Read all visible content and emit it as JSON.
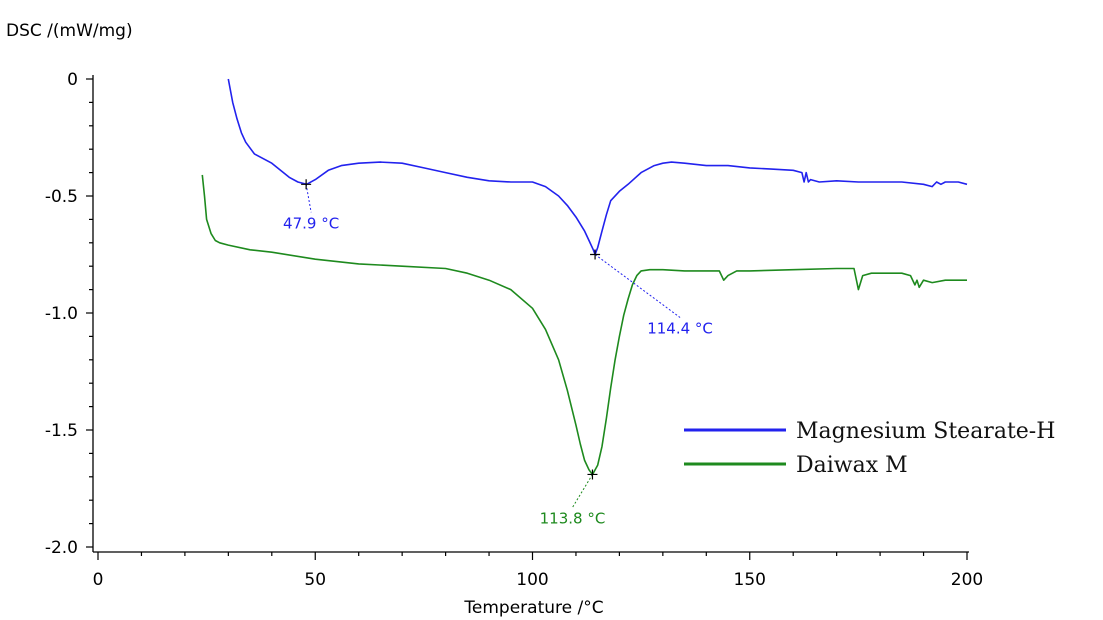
{
  "chart_data": {
    "type": "line",
    "ylabel": "DSC /(mW/mg)",
    "xlabel": "Temperature /°C",
    "xlim": [
      0,
      200
    ],
    "ylim": [
      -2.0,
      0
    ],
    "x_ticks": [
      0,
      50,
      100,
      150,
      200
    ],
    "x_tick_labels": [
      "0",
      "50",
      "100",
      "150",
      "200"
    ],
    "y_ticks": [
      0,
      -0.5,
      -1.0,
      -1.5,
      -2.0
    ],
    "y_tick_labels": [
      "0",
      "-0.5",
      "-1.0",
      "-1.5",
      "-2.0"
    ],
    "grid": false,
    "legend_position": "bottom-right",
    "series": [
      {
        "name": "Magnesium Stearate-H",
        "color": "#2222ee",
        "x": [
          30,
          31,
          32,
          33,
          34,
          36,
          38,
          40,
          42,
          44,
          46,
          48,
          50,
          53,
          56,
          60,
          65,
          70,
          75,
          80,
          85,
          90,
          95,
          100,
          103,
          106,
          108,
          110,
          112,
          113,
          114,
          114.4,
          115,
          116,
          117,
          118,
          120,
          122,
          125,
          128,
          130,
          132,
          135,
          140,
          145,
          150,
          155,
          160,
          162,
          162.5,
          163,
          163.5,
          164,
          166,
          170,
          175,
          180,
          185,
          190,
          192,
          193,
          194,
          195,
          198,
          200
        ],
        "y": [
          0,
          -0.1,
          -0.17,
          -0.23,
          -0.27,
          -0.32,
          -0.34,
          -0.36,
          -0.39,
          -0.42,
          -0.44,
          -0.45,
          -0.43,
          -0.39,
          -0.37,
          -0.36,
          -0.355,
          -0.36,
          -0.38,
          -0.4,
          -0.42,
          -0.435,
          -0.44,
          -0.44,
          -0.46,
          -0.5,
          -0.54,
          -0.59,
          -0.65,
          -0.69,
          -0.73,
          -0.75,
          -0.72,
          -0.65,
          -0.58,
          -0.52,
          -0.48,
          -0.45,
          -0.4,
          -0.37,
          -0.36,
          -0.355,
          -0.36,
          -0.37,
          -0.37,
          -0.38,
          -0.385,
          -0.39,
          -0.4,
          -0.44,
          -0.4,
          -0.44,
          -0.43,
          -0.44,
          -0.435,
          -0.44,
          -0.44,
          -0.44,
          -0.45,
          -0.46,
          -0.44,
          -0.45,
          -0.44,
          -0.44,
          -0.45
        ]
      },
      {
        "name": "Daiwax M",
        "color": "#1e8a1e",
        "x": [
          24,
          24.5,
          25,
          26,
          27,
          28,
          30,
          35,
          40,
          50,
          60,
          70,
          80,
          85,
          90,
          95,
          100,
          103,
          106,
          108,
          110,
          111,
          112,
          113,
          113.8,
          115,
          116,
          117,
          118,
          119,
          120,
          121,
          122,
          123,
          124,
          125,
          127,
          130,
          135,
          140,
          143,
          144,
          145,
          147,
          150,
          160,
          170,
          174,
          175,
          176,
          178,
          180,
          185,
          187,
          188,
          188.5,
          189,
          190,
          192,
          195,
          200
        ],
        "y": [
          -0.41,
          -0.5,
          -0.6,
          -0.66,
          -0.69,
          -0.7,
          -0.71,
          -0.73,
          -0.74,
          -0.77,
          -0.79,
          -0.8,
          -0.81,
          -0.83,
          -0.86,
          -0.9,
          -0.98,
          -1.07,
          -1.2,
          -1.33,
          -1.48,
          -1.56,
          -1.63,
          -1.67,
          -1.69,
          -1.65,
          -1.57,
          -1.45,
          -1.32,
          -1.2,
          -1.1,
          -1.01,
          -0.94,
          -0.88,
          -0.84,
          -0.82,
          -0.815,
          -0.815,
          -0.82,
          -0.82,
          -0.82,
          -0.86,
          -0.84,
          -0.82,
          -0.82,
          -0.815,
          -0.81,
          -0.81,
          -0.9,
          -0.84,
          -0.83,
          -0.83,
          -0.83,
          -0.84,
          -0.88,
          -0.86,
          -0.89,
          -0.86,
          -0.87,
          -0.86,
          -0.86
        ]
      }
    ],
    "annotations": [
      {
        "series": 0,
        "x": 47.9,
        "y": -0.45,
        "label": "47.9 °C",
        "color": "#2222ee"
      },
      {
        "series": 0,
        "x": 114.4,
        "y": -0.75,
        "label": "114.4 °C",
        "color": "#2222ee"
      },
      {
        "series": 1,
        "x": 113.8,
        "y": -1.69,
        "label": "113.8 °C",
        "color": "#1e8a1e"
      }
    ]
  }
}
